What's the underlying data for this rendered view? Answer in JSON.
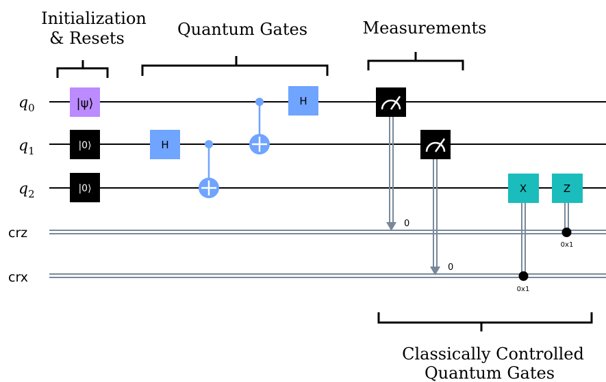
{
  "labels": {
    "init_line1": "Initialization",
    "init_line2": "& Resets",
    "gates": "Quantum Gates",
    "measurements": "Measurements",
    "cc_line1": "Classically Controlled",
    "cc_line2": "Quantum Gates"
  },
  "wires": {
    "q0": "q",
    "q0_sub": "0",
    "q1": "q",
    "q1_sub": "1",
    "q2": "q",
    "q2_sub": "2",
    "crz": "crz",
    "crx": "crx"
  },
  "gates": {
    "psi": "|ψ⟩",
    "reset1": "|0⟩",
    "reset2": "|0⟩",
    "h1": "H",
    "h0": "H",
    "x": "X",
    "z": "Z"
  },
  "measure": {
    "bit0": "0",
    "bit1": "0"
  },
  "conditions": {
    "z_cond": "0x1",
    "x_cond": "0x1"
  },
  "colors": {
    "wire": "#000000",
    "classical": "#778899",
    "psi_fill": "#bb8bff",
    "h_fill": "#6fa4ff",
    "measure_fill": "#000000",
    "reset_fill": "#000000",
    "cx_fill": "#6fa4ff",
    "conditional_fill": "#1bbcbc"
  }
}
